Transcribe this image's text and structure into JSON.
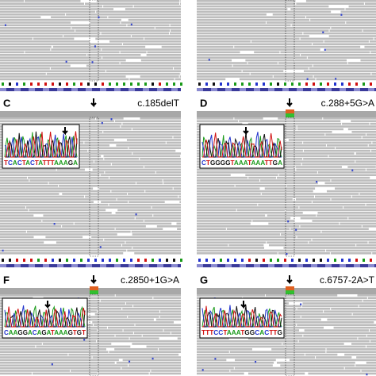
{
  "panels": [
    {
      "label": "C",
      "variant": "c.185delT",
      "sequence": "TCACTACTATTTAAAGA"
    },
    {
      "label": "D",
      "variant": "c.288+5G>A",
      "sequence": "CTGGGGTAAATAAATTGA"
    },
    {
      "label": "F",
      "variant": "c.2850+1G>A",
      "sequence": "CAAGGACAGATAAAGTGT"
    },
    {
      "label": "G",
      "variant": "c.6757-2A>T",
      "sequence": "TTTCCTAAATGGCACTTG"
    }
  ]
}
